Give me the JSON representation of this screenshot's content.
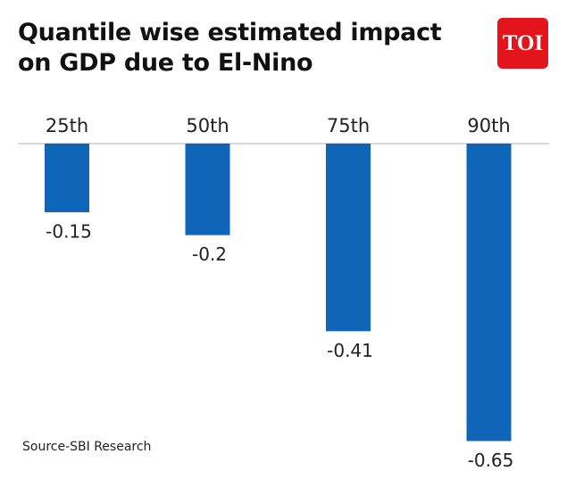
{
  "chart_data": {
    "type": "bar",
    "title": "Quantile wise estimated impact on GDP due to El-Nino",
    "categories": [
      "25th",
      "50th",
      "75th",
      "90th"
    ],
    "values": [
      -0.15,
      -0.2,
      -0.41,
      -0.65
    ],
    "color": "#0f66b8",
    "source": "Source-SBI Research"
  },
  "logo": "TOI"
}
